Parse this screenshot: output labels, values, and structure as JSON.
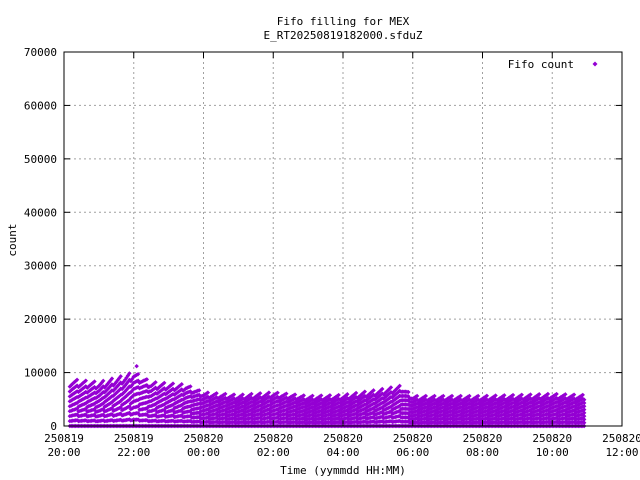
{
  "chart_data": {
    "type": "scatter",
    "title_lines": [
      "Fifo filling for MEX",
      "E_RT20250819182000.sfduZ"
    ],
    "xlabel": "Time (yymmdd HH:MM)",
    "ylabel": "count",
    "x_is_time": true,
    "xlim": [
      "2025-08-19 20:00",
      "2025-08-20 12:00"
    ],
    "ylim": [
      0,
      70000
    ],
    "y_ticks": [
      0,
      10000,
      20000,
      30000,
      40000,
      50000,
      60000,
      70000
    ],
    "y_tick_labels": [
      "0",
      "10000",
      "20000",
      "30000",
      "40000",
      "50000",
      "60000",
      "70000"
    ],
    "x_ticks": [
      {
        "date": "250819",
        "time": "20:00"
      },
      {
        "date": "250819",
        "time": "22:00"
      },
      {
        "date": "250820",
        "time": "00:00"
      },
      {
        "date": "250820",
        "time": "02:00"
      },
      {
        "date": "250820",
        "time": "04:00"
      },
      {
        "date": "250820",
        "time": "06:00"
      },
      {
        "date": "250820",
        "time": "08:00"
      },
      {
        "date": "250820",
        "time": "10:00"
      },
      {
        "date": "250820",
        "time": "12:00"
      }
    ],
    "grid": true,
    "legend_position": "top-right",
    "series": [
      {
        "name": "Fifo count",
        "color": "#9400d3",
        "marker": "diamond",
        "data_start": "2025-08-19 20:10",
        "data_end": "2025-08-20 10:55",
        "envelope_max": [
          [
            "2025-08-19 20:15",
            9000
          ],
          [
            "2025-08-19 21:00",
            8500
          ],
          [
            "2025-08-19 21:45",
            9800
          ],
          [
            "2025-08-19 22:00",
            10500
          ],
          [
            "2025-08-19 22:30",
            8500
          ],
          [
            "2025-08-19 23:30",
            8000
          ],
          [
            "2025-08-20 00:00",
            6500
          ],
          [
            "2025-08-20 01:00",
            6000
          ],
          [
            "2025-08-20 02:00",
            6500
          ],
          [
            "2025-08-20 03:00",
            5800
          ],
          [
            "2025-08-20 04:00",
            6000
          ],
          [
            "2025-08-20 05:00",
            7000
          ],
          [
            "2025-08-20 05:40",
            7800
          ],
          [
            "2025-08-20 06:00",
            5800
          ],
          [
            "2025-08-20 08:00",
            5800
          ],
          [
            "2025-08-20 09:00",
            6000
          ],
          [
            "2025-08-20 10:00",
            6200
          ],
          [
            "2025-08-20 10:50",
            6000
          ]
        ],
        "outliers": [
          [
            "2025-08-19 22:05",
            11200
          ]
        ]
      }
    ]
  }
}
